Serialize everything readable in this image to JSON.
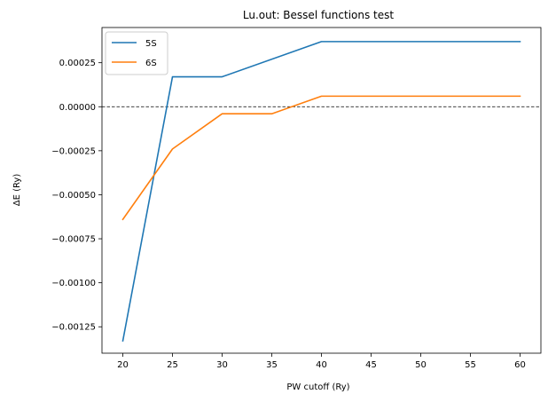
{
  "chart_data": {
    "type": "line",
    "title": "Lu.out: Bessel functions test",
    "xlabel": "PW cutoff (Ry)",
    "ylabel": "ΔE (Ry)",
    "xlim": [
      17.9,
      62.1
    ],
    "ylim": [
      -0.0014,
      0.00045
    ],
    "xticks": [
      20,
      25,
      30,
      35,
      40,
      45,
      50,
      55,
      60
    ],
    "xtick_labels": [
      "20",
      "25",
      "30",
      "35",
      "40",
      "45",
      "50",
      "55",
      "60"
    ],
    "yticks": [
      -0.00125,
      -0.001,
      -0.00075,
      -0.0005,
      -0.00025,
      0,
      0.00025
    ],
    "ytick_labels": [
      "−0.00125",
      "−0.00100",
      "−0.00075",
      "−0.00050",
      "−0.00025",
      "0.00000",
      "0.00025"
    ],
    "reference_line": {
      "y": 0,
      "style": "dashed",
      "color": "#000000"
    },
    "legend_position": "upper-left",
    "grid": false,
    "series": [
      {
        "name": "5S",
        "color": "#1f77b4",
        "x": [
          20,
          25,
          30,
          40,
          50,
          60
        ],
        "y": [
          -0.00133,
          0.00017,
          0.00017,
          0.00037,
          0.00037,
          0.00037
        ]
      },
      {
        "name": "6S",
        "color": "#ff7f0e",
        "x": [
          20,
          25,
          30,
          35,
          40,
          50,
          60
        ],
        "y": [
          -0.00064,
          -0.00024,
          -4e-05,
          -4e-05,
          6e-05,
          6e-05,
          6e-05
        ]
      }
    ]
  }
}
